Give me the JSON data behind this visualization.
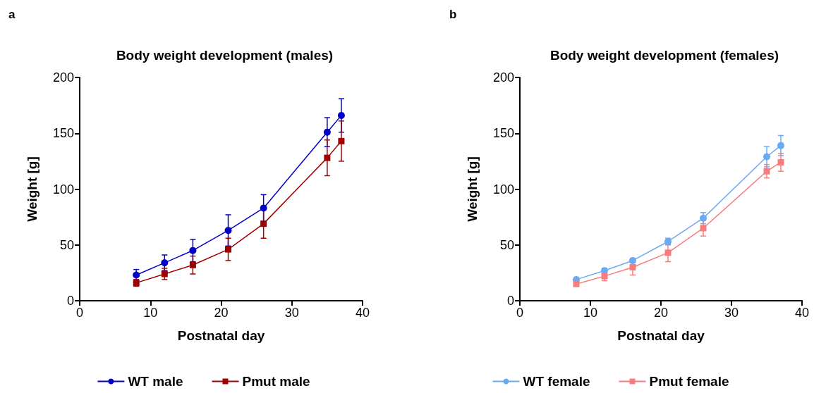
{
  "chart_data": [
    {
      "type": "line",
      "title": "Body weight development (males)",
      "xlabel": "Postnatal day",
      "ylabel": "Weight [g]",
      "annotations": [
        "a"
      ],
      "x": [
        8,
        12,
        16,
        21,
        26,
        35,
        37
      ],
      "xlim": [
        0,
        40
      ],
      "xticks": [
        0,
        10,
        20,
        30,
        40
      ],
      "ylim": [
        0,
        200
      ],
      "yticks": [
        0,
        50,
        100,
        150,
        200
      ],
      "grid": false,
      "legend": "bottom",
      "series": [
        {
          "name": "WT male",
          "color": "#0000c8",
          "marker": "circle",
          "values": [
            23,
            34,
            45,
            63,
            83,
            151,
            166
          ],
          "errors": [
            5,
            7,
            10,
            14,
            12,
            13,
            15
          ]
        },
        {
          "name": "Pmut male",
          "color": "#a00000",
          "marker": "square",
          "values": [
            16,
            24,
            32,
            46,
            69,
            128,
            143
          ],
          "errors": [
            3,
            5,
            8,
            10,
            13,
            16,
            18
          ]
        }
      ]
    },
    {
      "type": "line",
      "title": "Body weight development (females)",
      "xlabel": "Postnatal day",
      "ylabel": "Weight [g]",
      "annotations": [
        "b"
      ],
      "x": [
        8,
        12,
        16,
        21,
        26,
        35,
        37
      ],
      "xlim": [
        0,
        40
      ],
      "xticks": [
        0,
        10,
        20,
        30,
        40
      ],
      "ylim": [
        0,
        200
      ],
      "yticks": [
        0,
        50,
        100,
        150,
        200
      ],
      "grid": false,
      "legend": "bottom",
      "series": [
        {
          "name": "WT female",
          "color": "#6aaaf0",
          "marker": "circle",
          "values": [
            19,
            27,
            36,
            53,
            74,
            129,
            139
          ],
          "errors": [
            1.5,
            2,
            2,
            3,
            5,
            9,
            9
          ]
        },
        {
          "name": "Pmut female",
          "color": "#f87c7c",
          "marker": "square",
          "values": [
            15,
            22,
            30,
            43,
            65,
            116,
            124
          ],
          "errors": [
            2,
            4,
            7,
            8,
            7,
            6,
            8
          ]
        }
      ]
    }
  ]
}
